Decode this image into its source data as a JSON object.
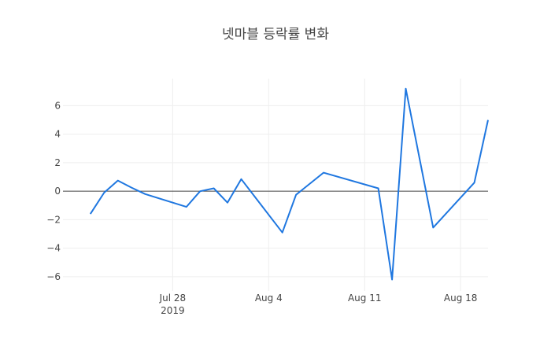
{
  "chart_data": {
    "type": "line",
    "title": "넷마블 등락률 변화",
    "xlabel": "",
    "ylabel": "",
    "x_axis": {
      "kind": "date",
      "range": [
        "2019-07-20",
        "2019-08-20"
      ],
      "ticks": [
        {
          "date": "2019-07-28",
          "label": "Jul 28",
          "sublabel": "2019"
        },
        {
          "date": "2019-08-04",
          "label": "Aug 4",
          "sublabel": ""
        },
        {
          "date": "2019-08-11",
          "label": "Aug 11",
          "sublabel": ""
        },
        {
          "date": "2019-08-18",
          "label": "Aug 18",
          "sublabel": ""
        }
      ]
    },
    "y_axis": {
      "range": [
        -7,
        7.9
      ],
      "ticks": [
        {
          "value": 6,
          "label": "6"
        },
        {
          "value": 4,
          "label": "4"
        },
        {
          "value": 2,
          "label": "2"
        },
        {
          "value": 0,
          "label": "0"
        },
        {
          "value": -2,
          "label": "−2"
        },
        {
          "value": -4,
          "label": "−4"
        },
        {
          "value": -6,
          "label": "−6"
        }
      ]
    },
    "grid": true,
    "zero_line": true,
    "series": [
      {
        "color": "#1f77e0",
        "points": [
          {
            "x": "2019-07-22",
            "y": -1.6
          },
          {
            "x": "2019-07-23",
            "y": -0.1
          },
          {
            "x": "2019-07-24",
            "y": 0.75
          },
          {
            "x": "2019-07-25",
            "y": 0.25
          },
          {
            "x": "2019-07-26",
            "y": -0.2
          },
          {
            "x": "2019-07-29",
            "y": -1.1
          },
          {
            "x": "2019-07-30",
            "y": 0.0
          },
          {
            "x": "2019-07-31",
            "y": 0.2
          },
          {
            "x": "2019-08-01",
            "y": -0.8
          },
          {
            "x": "2019-08-02",
            "y": 0.85
          },
          {
            "x": "2019-08-05",
            "y": -2.9
          },
          {
            "x": "2019-08-06",
            "y": -0.25
          },
          {
            "x": "2019-08-08",
            "y": 1.3
          },
          {
            "x": "2019-08-12",
            "y": 0.2
          },
          {
            "x": "2019-08-13",
            "y": -6.2
          },
          {
            "x": "2019-08-14",
            "y": 7.2
          },
          {
            "x": "2019-08-16",
            "y": -2.55
          },
          {
            "x": "2019-08-19",
            "y": 0.6
          },
          {
            "x": "2019-08-20",
            "y": 5.0
          }
        ]
      }
    ]
  }
}
